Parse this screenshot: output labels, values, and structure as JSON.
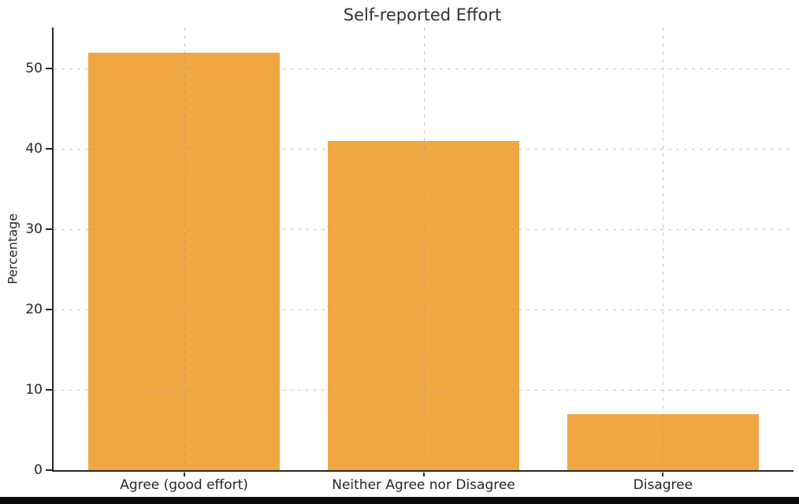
{
  "chart_data": {
    "type": "bar",
    "title": "Self-reported Effort",
    "categories": [
      "Agree (good effort)",
      "Neither Agree nor Disagree",
      "Disagree"
    ],
    "values": [
      52,
      41,
      7
    ],
    "xlabel": "",
    "ylabel": "Percentage",
    "ylim": [
      0,
      55.1
    ],
    "yticks": [
      0,
      10,
      20,
      30,
      40,
      50
    ],
    "grid": "on",
    "grid_style": "dashed",
    "legend": "none",
    "bar_color": "#F0A741",
    "axis_color": "#262626",
    "background_color": "#ffffff",
    "bottom_strip_color": "#0b0b0b"
  }
}
